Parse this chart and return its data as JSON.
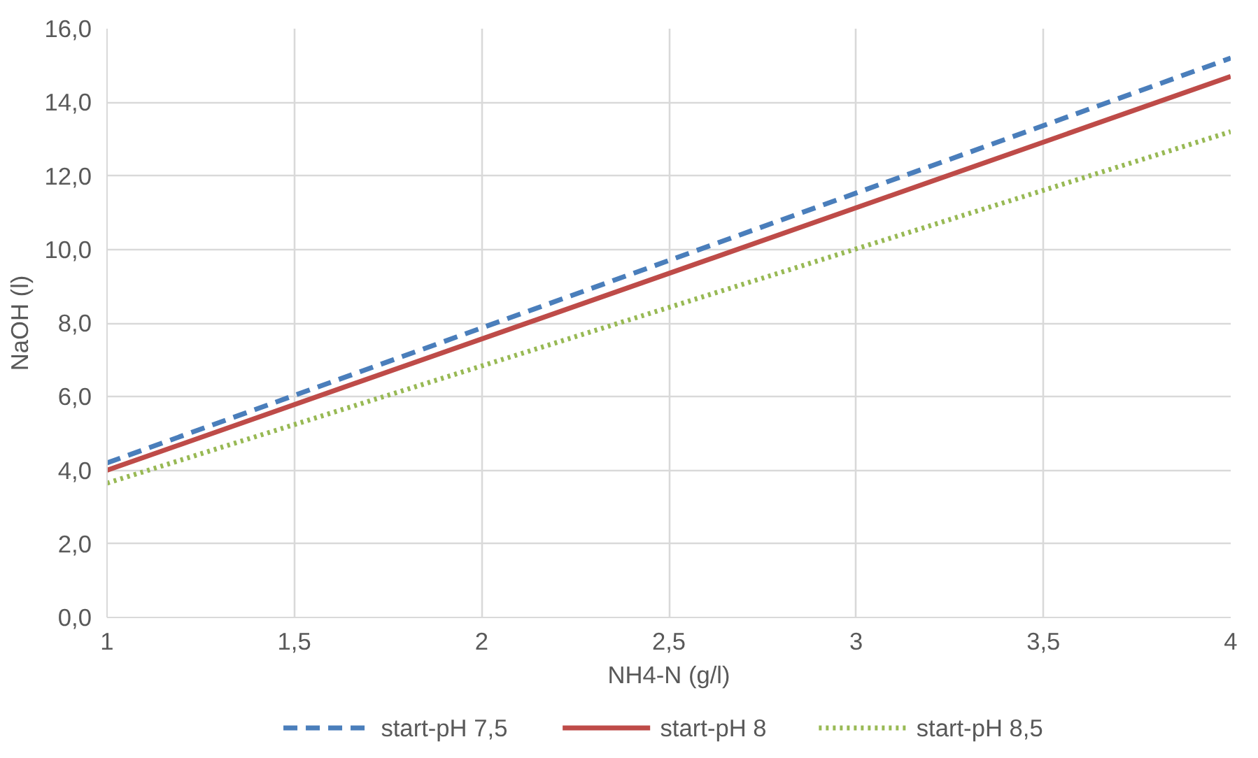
{
  "chart_data": {
    "type": "line",
    "xlabel": "NH4-N (g/l)",
    "ylabel": "NaOH (l)",
    "xlim": [
      1,
      4
    ],
    "xticks": [
      1,
      {
        "value": 1.5,
        "label": "1,5"
      },
      2,
      {
        "value": 2.5,
        "label": "2,5"
      },
      3,
      {
        "value": 3.5,
        "label": "3,5"
      },
      4
    ],
    "ylim": [
      0,
      16
    ],
    "yticks": [
      {
        "value": 0,
        "label": "0,0"
      },
      {
        "value": 2,
        "label": "2,0"
      },
      {
        "value": 4,
        "label": "4,0"
      },
      {
        "value": 6,
        "label": "6,0"
      },
      {
        "value": 8,
        "label": "8,0"
      },
      {
        "value": 10,
        "label": "10,0"
      },
      {
        "value": 12,
        "label": "12,0"
      },
      {
        "value": 14,
        "label": "14,0"
      },
      {
        "value": 16,
        "label": "16,0"
      }
    ],
    "x": [
      1,
      4
    ],
    "grid": true,
    "legend": "bottom",
    "marker": "none",
    "series": [
      {
        "name": "start-pH 7,5",
        "color": "#4a7ebb",
        "values": [
          4.2,
          15.2
        ],
        "line_style": "dashed"
      },
      {
        "name": "start-pH 8",
        "color": "#be4b48",
        "values": [
          4.0,
          14.7
        ],
        "line_style": "solid"
      },
      {
        "name": "start-pH 8,5",
        "color": "#98b954",
        "values": [
          3.65,
          13.2
        ],
        "line_style": "dotted"
      }
    ]
  }
}
